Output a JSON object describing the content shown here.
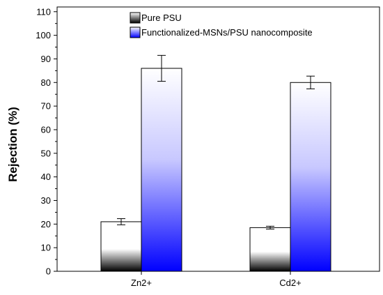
{
  "chart_data": {
    "type": "bar",
    "title": "",
    "xlabel": "",
    "ylabel": "Rejection (%)",
    "categories": [
      "Zn2+",
      "Cd2+"
    ],
    "ylim": [
      0,
      112
    ],
    "yticks": [
      0,
      10,
      20,
      30,
      40,
      50,
      60,
      70,
      80,
      90,
      100,
      110
    ],
    "grid": false,
    "legend_position": "top-right",
    "series": [
      {
        "name": "Pure PSU",
        "values": [
          21,
          18.5
        ],
        "errors": [
          1.3,
          0.6
        ],
        "fill": "gradient-black-white"
      },
      {
        "name": "Functionalized-MSNs/PSU nanocomposite",
        "values": [
          86,
          80
        ],
        "errors": [
          5.5,
          2.7
        ],
        "fill": "gradient-blue-white"
      }
    ],
    "colors": {
      "axis": "#000000",
      "series1_dark": "#000000",
      "series1_light": "#ffffff",
      "series2_dark": "#0000ff",
      "series2_light": "#ffffff"
    }
  }
}
